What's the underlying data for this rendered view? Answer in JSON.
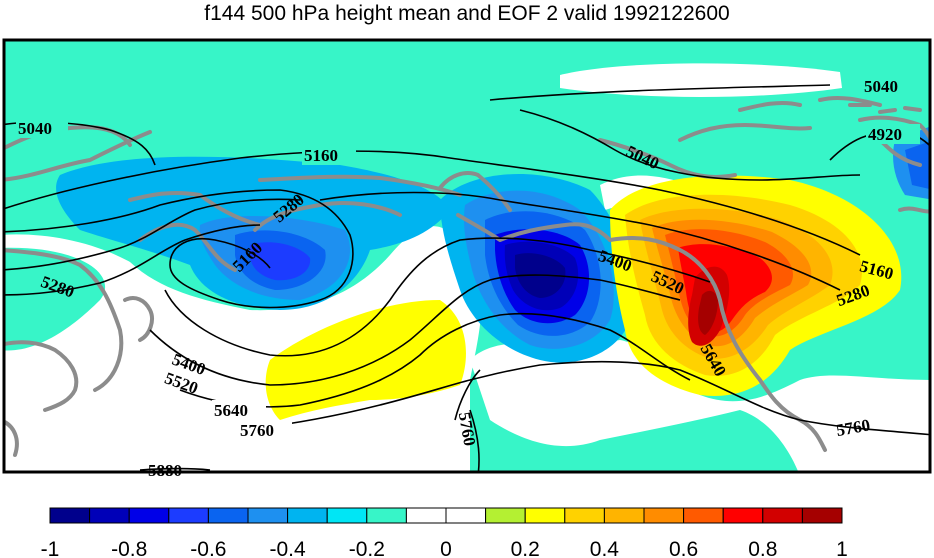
{
  "title": "f144 500 hPa height mean and EOF 2 valid 1992122600",
  "colorbar": {
    "tick_labels": [
      "-1",
      "-0.8",
      "-0.6",
      "-0.4",
      "-0.2",
      "0",
      "0.2",
      "0.4",
      "0.6",
      "0.8",
      "1"
    ],
    "colors": [
      "#00008c",
      "#0000b8",
      "#0000e8",
      "#1c3cff",
      "#0a64f0",
      "#1e90f0",
      "#00b4f0",
      "#00e6f5",
      "#37f5c8",
      "#ffffff",
      "#ffffff",
      "#b4f032",
      "#ffff00",
      "#ffd200",
      "#ffb400",
      "#ff8c00",
      "#ff5a00",
      "#ff0000",
      "#d20000",
      "#a50000"
    ]
  },
  "contour_labels": {
    "c5040a": "5040",
    "c5040b": "5040",
    "c5040c": "5040",
    "c4920": "4920",
    "c5160a": "5160",
    "c5160b": "5160",
    "c5160c": "5160",
    "c5280a": "5280",
    "c5280b": "5280",
    "c5280c": "5280",
    "c5400a": "5400",
    "c5400b": "5400",
    "c5520a": "5520",
    "c5520b": "5520",
    "c5640a": "5640",
    "c5640b": "5640",
    "c5760a": "5760",
    "c5760b": "5760",
    "c5760c": "5760",
    "c5880": "5880"
  },
  "colors": {
    "coast": "#8c8c8c",
    "contour": "#000000",
    "frame": "#000000"
  }
}
